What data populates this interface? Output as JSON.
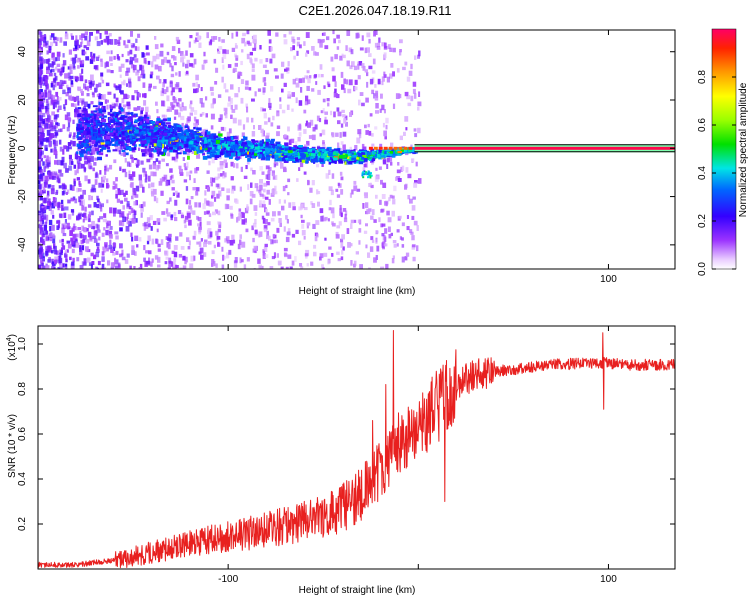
{
  "title": "C2E1.2026.047.18.19.R11",
  "chart_data": [
    {
      "type": "heatmap",
      "xlabel": "Height of straight line (km)",
      "ylabel": "Frequency (Hz)",
      "xlim": [
        -200,
        135
      ],
      "ylim": [
        -50,
        49
      ],
      "x_ticks": [
        -100,
        0,
        100
      ],
      "x_tick_labels": [
        "-100",
        "",
        "100"
      ],
      "y_ticks": [
        -40,
        -20,
        0,
        20,
        40
      ],
      "y_tick_labels": [
        "-40",
        "-20",
        "0",
        "20",
        "40"
      ],
      "colorbar": {
        "label": "Normalized spectral amplitude",
        "range": [
          0,
          1
        ],
        "ticks": [
          0.0,
          0.2,
          0.4,
          0.6,
          0.8
        ],
        "tick_labels": [
          "0.0",
          "0.2",
          "0.4",
          "0.6",
          "0.8"
        ]
      },
      "features": {
        "stable_line_start_km": -2,
        "stable_line_freq_hz": 0,
        "stable_line_amplitude": 0.98,
        "band_center_freq_hz": [
          [
            -170,
            8
          ],
          [
            -130,
            5
          ],
          [
            -100,
            1
          ],
          [
            -60,
            -2
          ],
          [
            -30,
            -3
          ],
          [
            -5,
            0
          ]
        ],
        "band_halfwidth_hz": [
          [
            -170,
            14
          ],
          [
            -130,
            9
          ],
          [
            -100,
            6
          ],
          [
            -60,
            4
          ],
          [
            -30,
            3
          ],
          [
            -5,
            1
          ]
        ]
      }
    },
    {
      "type": "line",
      "title": "",
      "xlabel": "Height of straight line (km)",
      "ylabel": "SNR (10 * v/v)",
      "y_multiplier_label": "(x10",
      "y_multiplier_exp": "4",
      "y_multiplier_close": ")",
      "xlim": [
        -200,
        135
      ],
      "ylim": [
        0,
        1.08
      ],
      "x_ticks": [
        -100,
        0,
        100
      ],
      "x_tick_labels": [
        "-100",
        "",
        "100"
      ],
      "y_ticks": [
        0.2,
        0.4,
        0.6,
        0.8,
        1.0
      ],
      "y_tick_labels": [
        "0.2",
        "0.4",
        "0.6",
        "0.8",
        "1.0"
      ],
      "series": [
        {
          "name": "SNR",
          "color": "#e8201f",
          "envelope_x": [
            -200,
            -180,
            -160,
            -140,
            -120,
            -100,
            -80,
            -60,
            -40,
            -30,
            -20,
            -10,
            0,
            10,
            20,
            30,
            50,
            70,
            95,
            110,
            135
          ],
          "envelope_y": [
            0.02,
            0.02,
            0.04,
            0.08,
            0.12,
            0.15,
            0.18,
            0.22,
            0.28,
            0.34,
            0.45,
            0.58,
            0.65,
            0.74,
            0.83,
            0.87,
            0.89,
            0.91,
            0.92,
            0.91,
            0.91
          ],
          "spikes": [
            {
              "x": -13,
              "y": 1.06
            },
            {
              "x": -17,
              "y": 0.82
            },
            {
              "x": -24,
              "y": 0.66
            },
            {
              "x": 14,
              "y": 0.3
            },
            {
              "x": 97,
              "y": 1.05
            },
            {
              "x": 97.5,
              "y": 0.71
            }
          ]
        }
      ]
    }
  ]
}
